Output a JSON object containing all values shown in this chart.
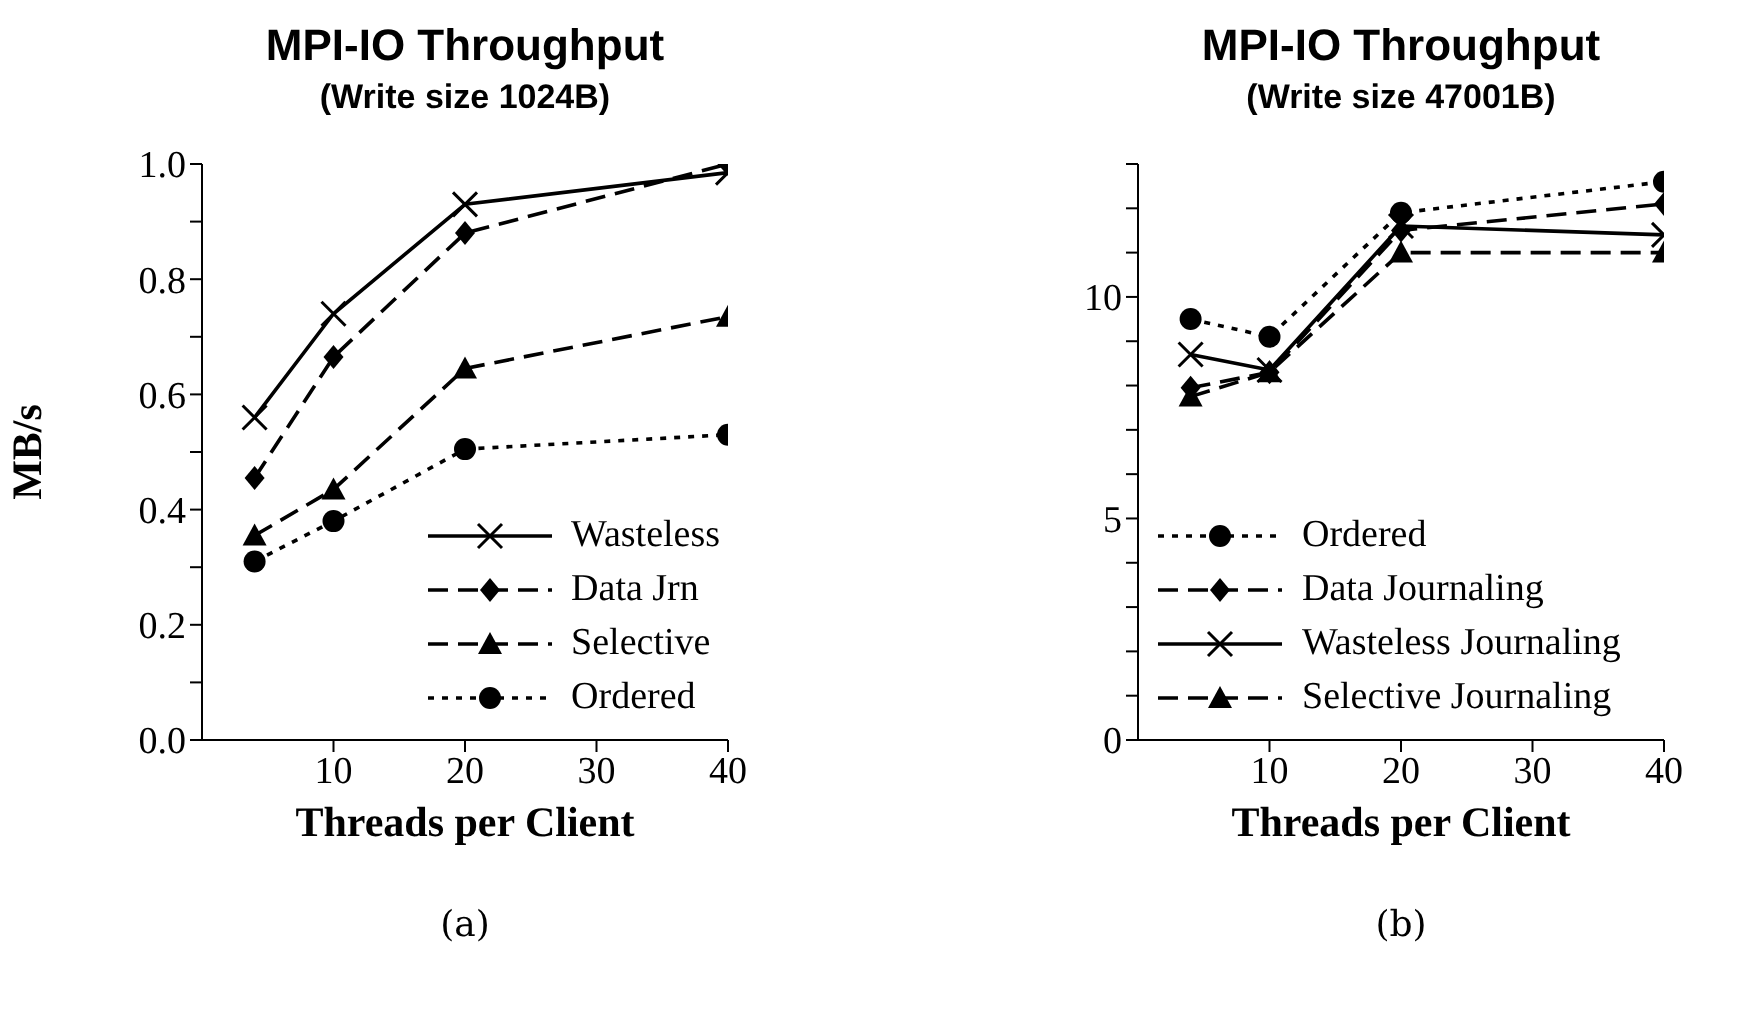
{
  "chart_data": [
    {
      "type": "line",
      "title": "MPI-IO Throughput",
      "subtitle": "(Write size 1024B)",
      "xlabel": "Threads per Client",
      "ylabel": "MB/s",
      "annotations": [
        "(a)"
      ],
      "x": [
        4,
        10,
        20,
        40
      ],
      "xlim": [
        0,
        40
      ],
      "xticks": [
        10,
        20,
        30,
        40
      ],
      "ylim": [
        0,
        1
      ],
      "yticks": [
        {
          "value": 0,
          "label": "0.0"
        },
        {
          "value": 0.1,
          "label": null
        },
        0.2,
        {
          "value": 0.3,
          "label": null
        },
        0.4,
        {
          "value": 0.5,
          "label": null
        },
        0.6,
        {
          "value": 0.7,
          "label": null
        },
        0.8,
        {
          "value": 0.9,
          "label": null
        },
        {
          "value": 1,
          "label": "1.0"
        }
      ],
      "legend": "bottom right",
      "grid": false,
      "series": [
        {
          "name": "Wasteless",
          "color": "#000000",
          "marker": "cross",
          "line_style": "solid",
          "values": [
            0.56,
            0.74,
            0.93,
            0.985
          ]
        },
        {
          "name": "Data Jrn",
          "color": "#000000",
          "marker": "diamond",
          "line_style": "dashed",
          "values": [
            0.455,
            0.665,
            0.88,
            1.0
          ]
        },
        {
          "name": "Selective",
          "color": "#000000",
          "marker": "triangle",
          "line_style": "dashed",
          "values": [
            0.355,
            0.435,
            0.645,
            0.735
          ]
        },
        {
          "name": "Ordered",
          "color": "#000000",
          "marker": "circle",
          "line_style": "dotted",
          "values": [
            0.31,
            0.38,
            0.505,
            0.53
          ]
        }
      ]
    },
    {
      "type": "line",
      "title": "MPI-IO Throughput",
      "subtitle": "(Write size 47001B)",
      "xlabel": "Threads per Client",
      "annotations": [
        "(b)"
      ],
      "x": [
        4,
        10,
        20,
        40
      ],
      "xlim": [
        0,
        40
      ],
      "xticks": [
        10,
        20,
        30,
        40
      ],
      "ylim": [
        0,
        13
      ],
      "yticks": [
        0,
        {
          "value": 1,
          "label": null
        },
        {
          "value": 2,
          "label": null
        },
        {
          "value": 3,
          "label": null
        },
        {
          "value": 4,
          "label": null
        },
        5,
        {
          "value": 6,
          "label": null
        },
        {
          "value": 7,
          "label": null
        },
        {
          "value": 8,
          "label": null
        },
        {
          "value": 9,
          "label": null
        },
        10,
        {
          "value": 11,
          "label": null
        },
        {
          "value": 12,
          "label": null
        },
        {
          "value": 13,
          "label": null
        }
      ],
      "legend": "bottom left",
      "grid": false,
      "series": [
        {
          "name": "Ordered",
          "color": "#000000",
          "marker": "circle",
          "line_style": "dotted",
          "values": [
            9.5,
            9.1,
            11.9,
            12.6
          ]
        },
        {
          "name": "Data Journaling",
          "color": "#000000",
          "marker": "diamond",
          "line_style": "dashed",
          "values": [
            7.95,
            8.3,
            11.5,
            12.1
          ]
        },
        {
          "name": "Wasteless Journaling",
          "color": "#000000",
          "marker": "cross",
          "line_style": "solid",
          "values": [
            8.7,
            8.35,
            11.6,
            11.4
          ]
        },
        {
          "name": "Selective Journaling",
          "color": "#000000",
          "marker": "triangle",
          "line_style": "dashed",
          "values": [
            7.75,
            8.3,
            11.0,
            11.0
          ]
        }
      ]
    }
  ]
}
